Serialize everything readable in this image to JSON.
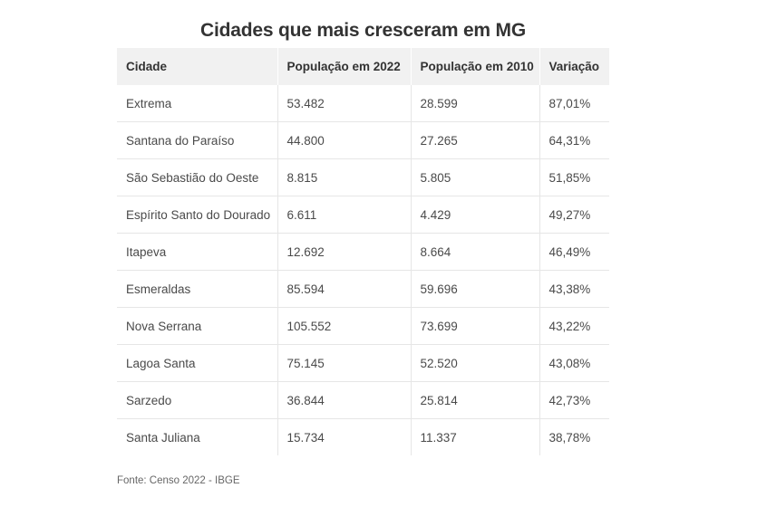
{
  "chart_data": {
    "type": "table",
    "title": "Cidades que mais cresceram em MG",
    "columns": [
      "Cidade",
      "População em 2022",
      "População em 2010",
      "Variação"
    ],
    "rows": [
      [
        "Extrema",
        "53.482",
        "28.599",
        "87,01%"
      ],
      [
        "Santana do Paraíso",
        "44.800",
        "27.265",
        "64,31%"
      ],
      [
        "São Sebastião do Oeste",
        "8.815",
        "5.805",
        "51,85%"
      ],
      [
        "Espírito Santo do Dourado",
        "6.611",
        "4.429",
        "49,27%"
      ],
      [
        "Itapeva",
        "12.692",
        "8.664",
        "46,49%"
      ],
      [
        "Esmeraldas",
        "85.594",
        "59.696",
        "43,38%"
      ],
      [
        "Nova Serrana",
        "105.552",
        "73.699",
        "43,22%"
      ],
      [
        "Lagoa Santa",
        "75.145",
        "52.520",
        "43,08%"
      ],
      [
        "Sarzedo",
        "36.844",
        "25.814",
        "42,73%"
      ],
      [
        "Santa Juliana",
        "15.734",
        "11.337",
        "38,78%"
      ]
    ],
    "source": "Fonte: Censo 2022 - IBGE"
  }
}
